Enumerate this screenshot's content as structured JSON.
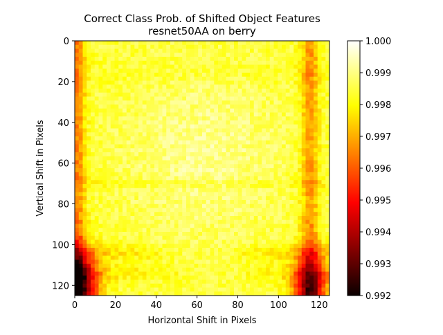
{
  "chart_data": {
    "type": "heatmap",
    "title": "Correct Class Prob. of Shifted Object Features",
    "subtitle": "resnet50AA on berry",
    "xlabel": "Horizontal Shift in Pixels",
    "ylabel": "Vertical Shift in Pixels",
    "xlim": [
      0,
      125
    ],
    "ylim": [
      125,
      0
    ],
    "grid_size": 64,
    "x_ticks": [
      "0",
      "20",
      "40",
      "60",
      "80",
      "100",
      "120"
    ],
    "y_ticks": [
      "0",
      "20",
      "40",
      "60",
      "80",
      "100",
      "120"
    ],
    "colormap": "hot",
    "colorbar": {
      "min": 0.992,
      "max": 1.0,
      "ticks": [
        "1.000",
        "0.999",
        "0.998",
        "0.997",
        "0.996",
        "0.995",
        "0.994",
        "0.993",
        "0.992"
      ]
    },
    "value_summary": {
      "center_value": 0.9991,
      "left_edge_value": 0.9972,
      "right_edge_value": 0.9974,
      "bottom_left_corner_min": 0.9925,
      "bottom_right_corner_min": 0.9942,
      "typical_value": 0.9984
    }
  }
}
